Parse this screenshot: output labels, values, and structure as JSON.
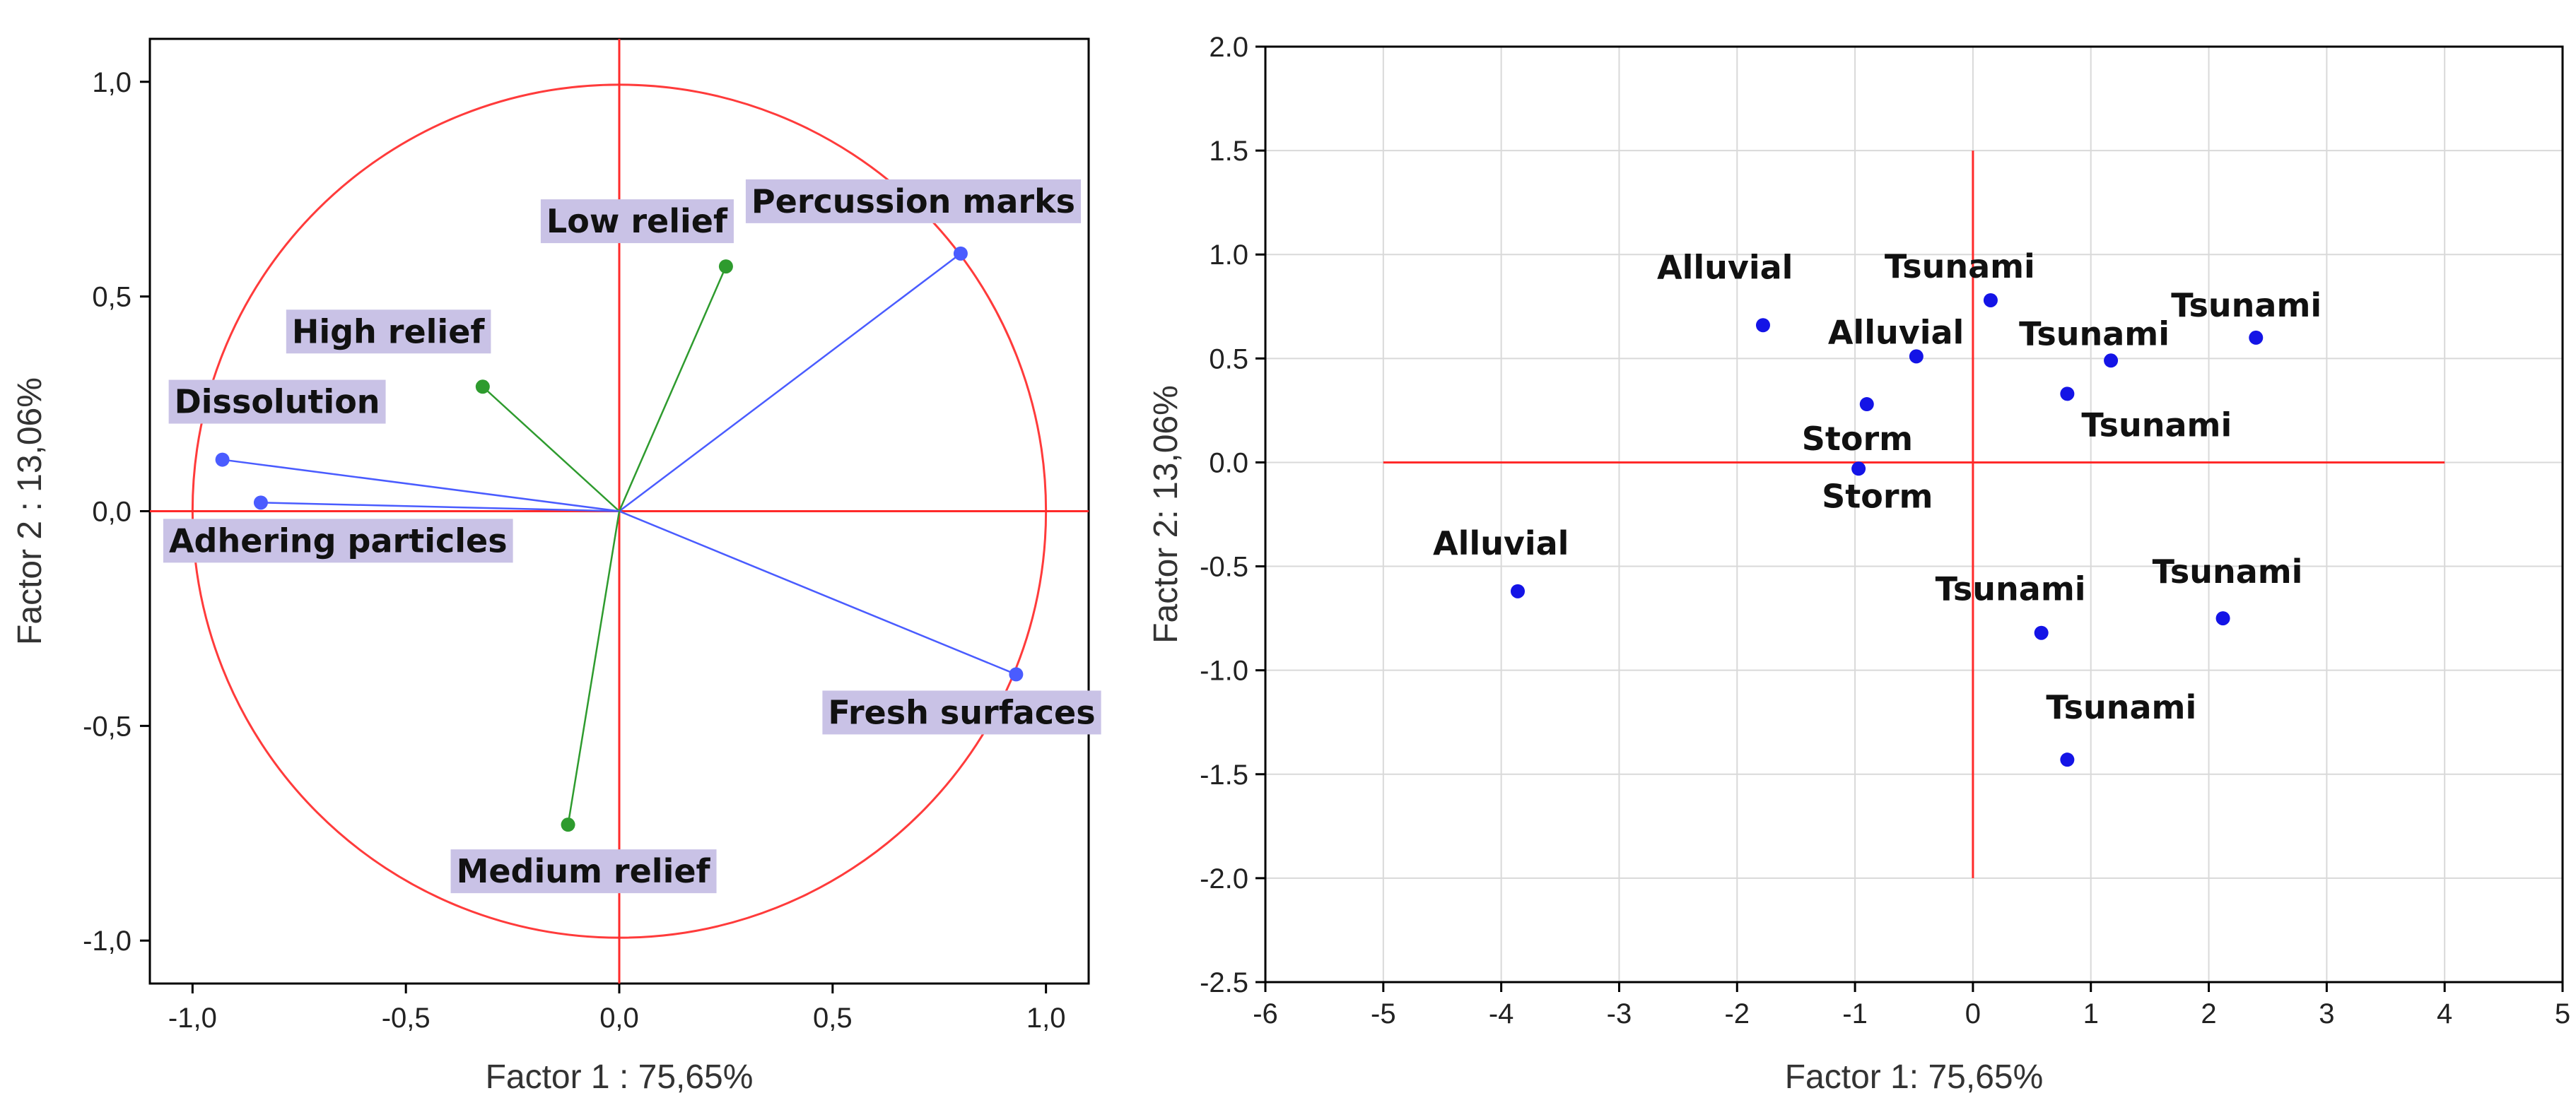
{
  "colors": {
    "circle": "#ff3b3b",
    "reference_lines": "#ff2a2a",
    "vector_green": "#2e9b2e",
    "vector_blue": "#4a5cff",
    "point_blue": "#1414e6",
    "label_box": "#c9c2e6",
    "grid": "#d9d9d9",
    "axis_frame": "#000000"
  },
  "chart_data": [
    {
      "type": "scatter",
      "subtype": "correlation-circle",
      "xlabel": "Factor 1 : 75,65%",
      "ylabel": "Factor 2 : 13,06%",
      "xlim": [
        -1.1,
        1.1
      ],
      "ylim": [
        -1.1,
        1.1
      ],
      "x_ticks": [
        "-1,0",
        "-0,5",
        "0,0",
        "0,5",
        "1,0"
      ],
      "y_ticks": [
        "1,0",
        "0,5",
        "0,0",
        "-0,5",
        "-1,0"
      ],
      "x_tick_values": [
        -1.0,
        -0.5,
        0.0,
        0.5,
        1.0
      ],
      "y_tick_values": [
        1.0,
        0.5,
        0.0,
        -0.5,
        -1.0
      ],
      "grid": false,
      "unit_circle": true,
      "points": [
        {
          "label": "Percussion marks",
          "x": 0.8,
          "y": 0.6,
          "color": "blue"
        },
        {
          "label": "Low relief",
          "x": 0.25,
          "y": 0.57,
          "color": "green"
        },
        {
          "label": "High relief",
          "x": -0.32,
          "y": 0.29,
          "color": "green"
        },
        {
          "label": "Dissolution",
          "x": -0.93,
          "y": 0.12,
          "color": "blue"
        },
        {
          "label": "Adhering particles",
          "x": -0.84,
          "y": 0.02,
          "color": "blue"
        },
        {
          "label": "Fresh surfaces",
          "x": 0.93,
          "y": -0.38,
          "color": "blue"
        },
        {
          "label": "Medium relief",
          "x": -0.12,
          "y": -0.73,
          "color": "green"
        }
      ]
    },
    {
      "type": "scatter",
      "xlabel": "Factor 1: 75,65%",
      "ylabel": "Factor 2: 13,06%",
      "xlim": [
        -6,
        5
      ],
      "ylim": [
        -2.5,
        2.0
      ],
      "x_ticks": [
        "-6",
        "-5",
        "-4",
        "-3",
        "-2",
        "-1",
        "0",
        "1",
        "2",
        "3",
        "4",
        "5"
      ],
      "y_ticks": [
        "2.0",
        "1.5",
        "1.0",
        "0.5",
        "0.0",
        "-0.5",
        "-1.0",
        "-1.5",
        "-2.0",
        "-2.5"
      ],
      "x_tick_values": [
        -6,
        -5,
        -4,
        -3,
        -2,
        -1,
        0,
        1,
        2,
        3,
        4,
        5
      ],
      "y_tick_values": [
        2.0,
        1.5,
        1.0,
        0.5,
        0.0,
        -0.5,
        -1.0,
        -1.5,
        -2.0,
        -2.5
      ],
      "grid": true,
      "reference_lines": {
        "horizontal": {
          "y": 0,
          "x_from": -5,
          "x_to": 4
        },
        "vertical": {
          "x": 0,
          "y_from": -2.0,
          "y_to": 1.5
        }
      },
      "points": [
        {
          "label": "Alluvial",
          "x": -1.78,
          "y": 0.66
        },
        {
          "label": "Alluvial",
          "x": -0.48,
          "y": 0.51
        },
        {
          "label": "Alluvial",
          "x": -3.86,
          "y": -0.62
        },
        {
          "label": "Storm",
          "x": -0.9,
          "y": 0.28
        },
        {
          "label": "Storm",
          "x": -0.97,
          "y": -0.03
        },
        {
          "label": "Tsunami",
          "x": 0.15,
          "y": 0.78
        },
        {
          "label": "Tsunami",
          "x": 1.17,
          "y": 0.49
        },
        {
          "label": "Tsunami",
          "x": 2.4,
          "y": 0.6
        },
        {
          "label": "Tsunami",
          "x": 0.8,
          "y": 0.33
        },
        {
          "label": "Tsunami",
          "x": 0.58,
          "y": -0.82
        },
        {
          "label": "Tsunami",
          "x": 2.12,
          "y": -0.75
        },
        {
          "label": "Tsunami",
          "x": 0.8,
          "y": -1.43
        }
      ]
    }
  ]
}
